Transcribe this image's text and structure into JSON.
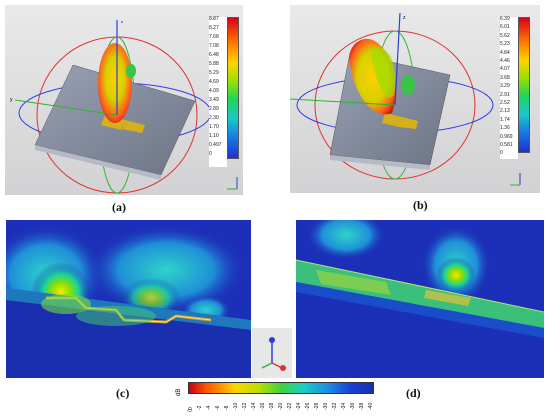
{
  "figure": {
    "panels": [
      {
        "id": "a",
        "label": "(a)",
        "scale_max": "8.87",
        "ticks": [
          "8.87",
          "8.27",
          "7.68",
          "7.08",
          "6.48",
          "5.88",
          "5.29",
          "4.69",
          "4.09",
          "3.49",
          "2.89",
          "2.30",
          "1.70",
          "1.10",
          "0.497",
          "0"
        ],
        "axis_labels": {
          "x": "x",
          "y": "y",
          "z": "z",
          "theta": "theta",
          "phi": "Phi"
        }
      },
      {
        "id": "b",
        "label": "(b)",
        "scale_max": "6.39",
        "ticks": [
          "6.39",
          "6.01",
          "5.62",
          "5.23",
          "4.84",
          "4.46",
          "4.07",
          "3.68",
          "3.29",
          "2.91",
          "2.52",
          "2.13",
          "1.74",
          "1.36",
          "0.969",
          "0.581",
          "0"
        ],
        "axis_labels": {
          "x": "x",
          "y": "y",
          "z": "z",
          "theta": "theta",
          "phi": "Phi"
        }
      },
      {
        "id": "c",
        "label": "(c)"
      },
      {
        "id": "d",
        "label": "(d)"
      }
    ],
    "db_colorbar": {
      "unit": "dB",
      "ticks": [
        "0",
        "-2",
        "-4",
        "-6",
        "-8",
        "-10",
        "-12",
        "-14",
        "-16",
        "-18",
        "-20",
        "-22",
        "-24",
        "-26",
        "-28",
        "-30",
        "-32",
        "-34",
        "-36",
        "-38",
        "-40"
      ]
    },
    "colors": {
      "red": "#e31a1c",
      "yellow": "#ffe600",
      "green": "#2ecc40",
      "cyan": "#17d4d4",
      "blue": "#1f3fd1",
      "dark_blue": "#1a2fa8"
    }
  }
}
